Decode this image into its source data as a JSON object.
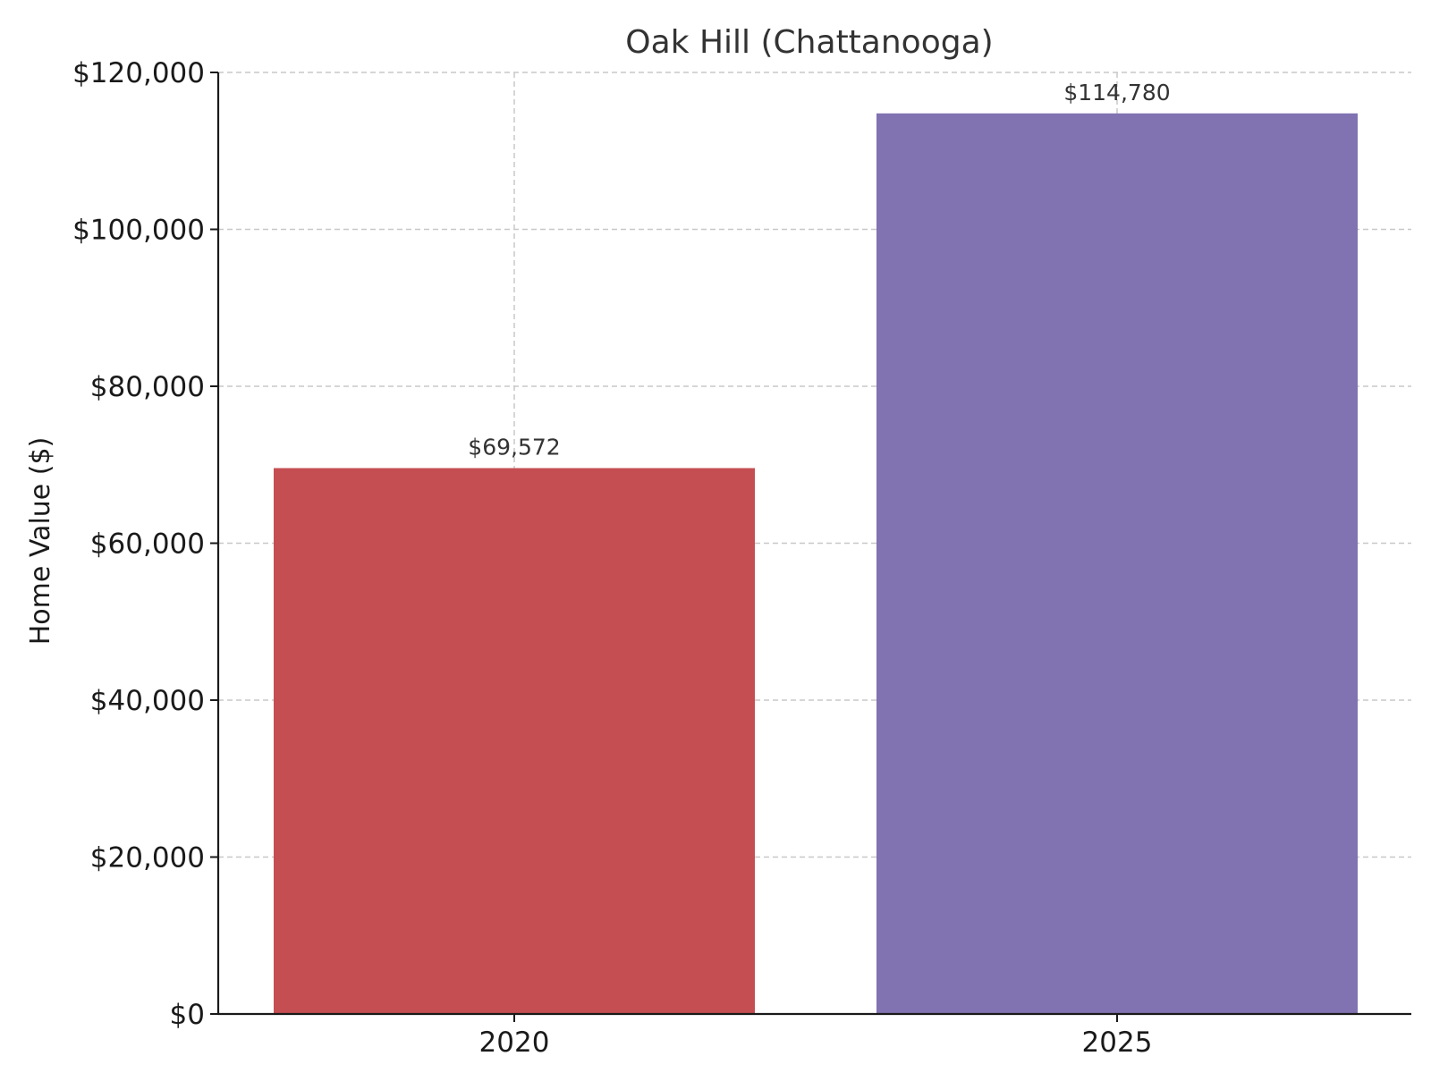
{
  "chart_data": {
    "type": "bar",
    "title": "Oak Hill (Chattanooga)",
    "xlabel": "",
    "ylabel": "Home Value ($)",
    "categories": [
      "2020",
      "2025"
    ],
    "values": [
      69572,
      114780
    ],
    "value_labels": [
      "$69,572",
      "$114,780"
    ],
    "colors": [
      "#c44e52",
      "#8172b2"
    ],
    "ylim": [
      0,
      120000
    ],
    "yticks": [
      0,
      20000,
      40000,
      60000,
      80000,
      100000,
      120000
    ],
    "ytick_labels": [
      "$0",
      "$20,000",
      "$40,000",
      "$60,000",
      "$80,000",
      "$100,000",
      "$120,000"
    ],
    "grid": true
  }
}
